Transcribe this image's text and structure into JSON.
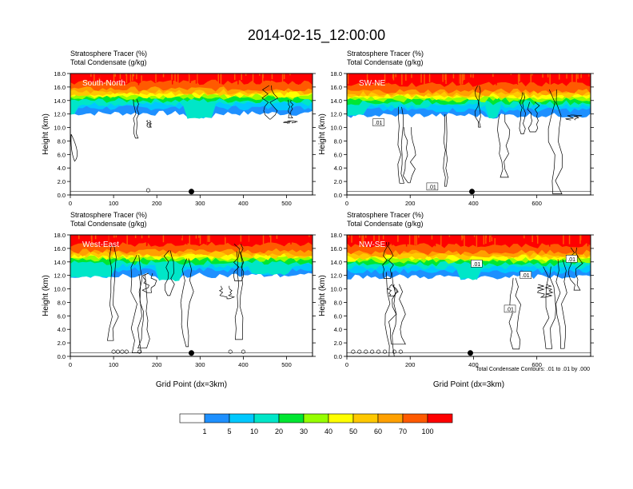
{
  "figure": {
    "title": "2014-02-15_12:00:00",
    "contour_note": "Total Condensate Contours: .01 to .01 by .000"
  },
  "panel_header": {
    "line1": "Stratosphere Tracer   (%)",
    "line2": "Total Condensate   (g/kg)"
  },
  "axes": {
    "ylabel": "Height (km)",
    "xlabel": "Grid Point (dx=3km)",
    "yticks": [
      "0.0",
      "2.0",
      "4.0",
      "6.0",
      "8.0",
      "10.0",
      "12.0",
      "14.0",
      "16.0",
      "18.0"
    ]
  },
  "colorbar": {
    "labels": [
      "1",
      "5",
      "10",
      "20",
      "30",
      "40",
      "50",
      "60",
      "70",
      "100"
    ],
    "colors": [
      "#ffffff",
      "#1e90ff",
      "#00c8ff",
      "#00e6c8",
      "#00e632",
      "#96ff00",
      "#ffff00",
      "#ffc800",
      "#ffa000",
      "#ff5a00",
      "#ff0000"
    ]
  },
  "chart_data": [
    {
      "type": "heatmap",
      "panel_label": "South-North",
      "xlim": [
        0,
        560
      ],
      "ylim": [
        0,
        18
      ],
      "xticks": [
        "0",
        "100",
        "200",
        "300",
        "400",
        "500"
      ],
      "xlabel": "",
      "marker_x": 280,
      "small_circles_x": [
        180
      ],
      "contour_labels": [],
      "tropopause_km": 14.3,
      "shallow_bands": [
        [
          0,
          10,
          12.0
        ],
        [
          270,
          330,
          11.5
        ],
        [
          370,
          560,
          13.8
        ]
      ]
    },
    {
      "type": "heatmap",
      "panel_label": "SW-NE",
      "xlim": [
        0,
        770
      ],
      "ylim": [
        0,
        18
      ],
      "xticks": [
        "0",
        "200",
        "400",
        "600"
      ],
      "xlabel": "",
      "marker_x": 395,
      "small_circles_x": [],
      "contour_labels": [
        {
          "text": ".01",
          "x": 100,
          "y": 10.7
        },
        {
          "text": ".01",
          "x": 270,
          "y": 1.2
        }
      ],
      "tropopause_km": 14.0,
      "shallow_bands": [
        [
          0,
          60,
          11.8
        ],
        [
          440,
          480,
          11.5
        ]
      ]
    },
    {
      "type": "heatmap",
      "panel_label": "West-East",
      "xlim": [
        0,
        560
      ],
      "ylim": [
        0,
        18
      ],
      "xticks": [
        "0",
        "100",
        "200",
        "300",
        "400",
        "500"
      ],
      "xlabel": "Grid Point (dx=3km)",
      "marker_x": 280,
      "small_circles_x": [
        100,
        110,
        120,
        130,
        160,
        370,
        400
      ],
      "contour_labels": [],
      "tropopause_km": 14.2,
      "shallow_bands": [
        [
          0,
          100,
          11.8
        ],
        [
          200,
          260,
          11.3
        ],
        [
          420,
          510,
          12.2
        ]
      ]
    },
    {
      "type": "heatmap",
      "panel_label": "NW-SE",
      "xlim": [
        0,
        770
      ],
      "ylim": [
        0,
        18
      ],
      "xticks": [
        "0",
        "200",
        "400",
        "600"
      ],
      "xlabel": "Grid Point (dx=3km)",
      "marker_x": 390,
      "small_circles_x": [
        20,
        40,
        60,
        80,
        100,
        120,
        150,
        170
      ],
      "contour_labels": [
        {
          "text": ".01",
          "x": 410,
          "y": 13.7
        },
        {
          "text": ".01",
          "x": 565,
          "y": 12.0
        },
        {
          "text": ".01",
          "x": 515,
          "y": 7.0
        },
        {
          "text": ".01",
          "x": 710,
          "y": 14.4
        }
      ],
      "tropopause_km": 14.0,
      "shallow_bands": [
        [
          0,
          350,
          13.3
        ],
        [
          350,
          420,
          11.5
        ]
      ]
    }
  ]
}
